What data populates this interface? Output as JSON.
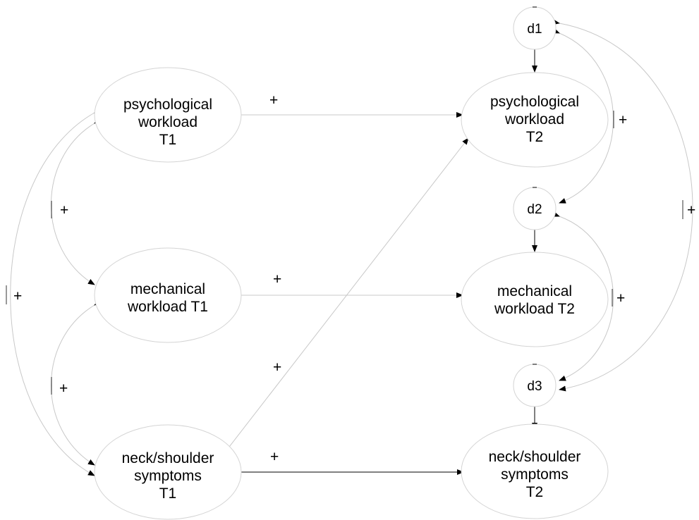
{
  "nodes": {
    "psych_t1": {
      "lines": [
        "psychological",
        "workload",
        "T1"
      ]
    },
    "mech_t1": {
      "lines": [
        "mechanical",
        "workload T1"
      ]
    },
    "neck_t1": {
      "lines": [
        "neck/shoulder",
        "symptoms",
        "T1"
      ]
    },
    "psych_t2": {
      "lines": [
        "psychological",
        "workload",
        "T2"
      ]
    },
    "mech_t2": {
      "lines": [
        "mechanical",
        "workload T2"
      ]
    },
    "neck_t2": {
      "lines": [
        "neck/shoulder",
        "symptoms",
        "T2"
      ]
    }
  },
  "disturbances": {
    "d1": "d1",
    "d2": "d2",
    "d3": "d3"
  },
  "signs": {
    "psych_t1_to_psych_t2": "+",
    "mech_t1_to_mech_t2": "+",
    "neck_t1_to_psych_t2": "+",
    "neck_t1_to_neck_t2": "+",
    "cov_psych_mech_t1": "+",
    "cov_mech_neck_t1": "+",
    "cov_psych_neck_t1": "+",
    "cov_d1_d2": "+",
    "cov_d2_d3": "+",
    "cov_d1_d3": "+"
  },
  "colors": {
    "line": "#000000",
    "light_line": "#c8c8c8",
    "ellipse_stroke": "#d4d4d4"
  }
}
